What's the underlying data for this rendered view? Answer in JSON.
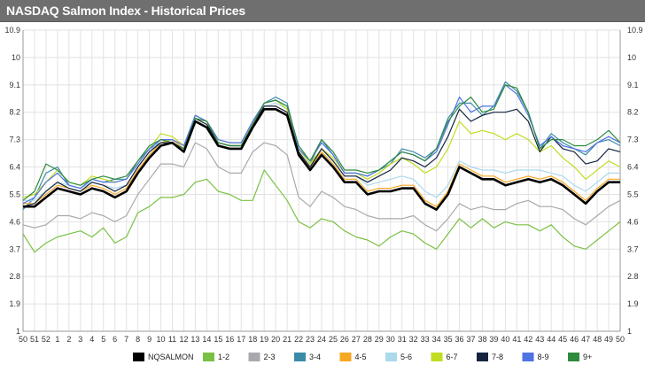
{
  "header": {
    "title": "NASDAQ Salmon Index - Historical Prices"
  },
  "chart_data": {
    "type": "line",
    "title": "NASDAQ Salmon Index - Historical Prices",
    "xlabel": "",
    "ylabel": "",
    "ylim": [
      1,
      10.9
    ],
    "y_ticks": [
      "1",
      "1.9",
      "2.8",
      "3.7",
      "4.6",
      "5.5",
      "6.4",
      "7.3",
      "8.2",
      "9.1",
      "10",
      "10.9"
    ],
    "categories": [
      "50",
      "51",
      "52",
      "1",
      "2",
      "3",
      "4",
      "5",
      "6",
      "7",
      "8",
      "9",
      "10",
      "11",
      "12",
      "13",
      "14",
      "15",
      "16",
      "17",
      "18",
      "19",
      "20",
      "21",
      "22",
      "23",
      "24",
      "25",
      "26",
      "27",
      "28",
      "29",
      "30",
      "31",
      "32",
      "33",
      "34",
      "35",
      "36",
      "37",
      "38",
      "39",
      "40",
      "41",
      "42",
      "43",
      "44",
      "45",
      "46",
      "47",
      "48",
      "49",
      "50"
    ],
    "grid": true,
    "legend_position": "bottom",
    "series": [
      {
        "name": "NQSALMON",
        "color": "#000000",
        "values": [
          5.1,
          5.1,
          5.4,
          5.7,
          5.6,
          5.5,
          5.7,
          5.6,
          5.4,
          5.6,
          6.2,
          6.7,
          7.1,
          7.2,
          6.9,
          7.9,
          7.7,
          7.1,
          7.0,
          7.0,
          7.7,
          8.3,
          8.3,
          8.1,
          6.8,
          6.3,
          6.8,
          6.4,
          5.9,
          5.9,
          5.5,
          5.6,
          5.6,
          5.7,
          5.7,
          5.2,
          5.0,
          5.5,
          6.4,
          6.2,
          6.0,
          6.0,
          5.8,
          5.9,
          6.0,
          5.9,
          6.0,
          5.8,
          5.5,
          5.2,
          5.6,
          5.9,
          5.9
        ]
      },
      {
        "name": "1-2",
        "color": "#7ac143",
        "values": [
          4.2,
          3.6,
          3.9,
          4.1,
          4.2,
          4.3,
          4.1,
          4.4,
          3.9,
          4.1,
          4.9,
          5.1,
          5.4,
          5.4,
          5.5,
          5.9,
          6.0,
          5.6,
          5.5,
          5.3,
          5.3,
          6.3,
          5.8,
          5.3,
          4.6,
          4.4,
          4.7,
          4.6,
          4.3,
          4.1,
          4.0,
          3.8,
          4.1,
          4.3,
          4.2,
          3.9,
          3.7,
          4.2,
          4.7,
          4.4,
          4.7,
          4.4,
          4.6,
          4.5,
          4.5,
          4.3,
          4.5,
          4.1,
          3.8,
          3.7,
          4.0,
          4.3,
          4.6
        ]
      },
      {
        "name": "2-3",
        "color": "#a7a9ac",
        "values": [
          4.5,
          4.4,
          4.5,
          4.8,
          4.8,
          4.7,
          4.9,
          4.8,
          4.6,
          4.8,
          5.5,
          6.0,
          6.5,
          6.5,
          6.4,
          7.2,
          7.0,
          6.4,
          6.2,
          6.2,
          6.9,
          7.2,
          7.1,
          6.8,
          5.4,
          5.1,
          5.6,
          5.4,
          5.1,
          5.0,
          4.8,
          4.7,
          4.7,
          4.7,
          4.8,
          4.5,
          4.3,
          4.7,
          5.2,
          5.0,
          5.1,
          5.0,
          5.0,
          5.2,
          5.3,
          5.1,
          5.1,
          5.0,
          4.7,
          4.5,
          4.8,
          5.1,
          5.3
        ]
      },
      {
        "name": "3-4",
        "color": "#3b8aa8",
        "values": [
          5.0,
          5.4,
          6.2,
          6.4,
          5.8,
          5.7,
          6.0,
          5.9,
          6.0,
          6.0,
          6.6,
          7.0,
          7.2,
          7.2,
          7.0,
          8.1,
          7.9,
          7.2,
          7.1,
          7.1,
          7.8,
          8.5,
          8.7,
          8.5,
          7.0,
          6.5,
          7.3,
          6.8,
          6.2,
          6.2,
          6.1,
          6.3,
          6.5,
          7.0,
          6.9,
          6.7,
          7.0,
          8.0,
          8.5,
          8.5,
          8.1,
          8.4,
          9.2,
          8.9,
          8.2,
          7.0,
          7.5,
          7.2,
          7.0,
          6.8,
          7.2,
          7.3,
          7.1
        ]
      },
      {
        "name": "4-5",
        "color": "#f7a823",
        "values": [
          5.2,
          5.2,
          5.5,
          5.8,
          5.7,
          5.6,
          5.8,
          5.7,
          5.5,
          5.7,
          6.3,
          6.8,
          7.2,
          7.3,
          7.0,
          8.0,
          7.8,
          7.2,
          7.1,
          7.1,
          7.8,
          8.4,
          8.4,
          8.2,
          6.9,
          6.4,
          6.9,
          6.5,
          6.0,
          6.0,
          5.6,
          5.7,
          5.7,
          5.8,
          5.8,
          5.3,
          5.1,
          5.6,
          6.5,
          6.3,
          6.1,
          6.1,
          5.9,
          6.0,
          6.1,
          6.0,
          6.1,
          5.9,
          5.6,
          5.3,
          5.7,
          6.0,
          6.0
        ]
      },
      {
        "name": "5-6",
        "color": "#acd9ec",
        "values": [
          5.3,
          5.3,
          5.6,
          5.9,
          5.8,
          5.7,
          5.9,
          5.8,
          5.7,
          5.8,
          6.4,
          6.9,
          7.3,
          7.3,
          7.1,
          8.0,
          7.9,
          7.3,
          7.2,
          7.2,
          7.9,
          8.4,
          8.5,
          8.3,
          7.0,
          6.5,
          7.0,
          6.6,
          6.1,
          6.1,
          5.8,
          5.9,
          6.0,
          6.1,
          6.0,
          5.6,
          5.4,
          5.8,
          6.6,
          6.4,
          6.3,
          6.3,
          6.2,
          6.3,
          6.3,
          6.3,
          6.2,
          6.1,
          5.8,
          5.6,
          5.9,
          6.2,
          6.2
        ]
      },
      {
        "name": "6-7",
        "color": "#c2dc21",
        "values": [
          5.4,
          5.5,
          5.9,
          6.3,
          5.9,
          5.8,
          6.1,
          6.0,
          5.9,
          6.0,
          6.5,
          7.0,
          7.5,
          7.4,
          7.1,
          8.1,
          7.9,
          7.3,
          7.2,
          7.2,
          7.9,
          8.5,
          8.6,
          8.3,
          7.0,
          6.5,
          7.0,
          6.7,
          6.2,
          6.2,
          6.0,
          6.2,
          6.5,
          6.7,
          6.5,
          6.2,
          6.4,
          7.0,
          7.9,
          7.5,
          7.6,
          7.5,
          7.3,
          7.5,
          7.3,
          6.9,
          7.1,
          6.7,
          6.4,
          6.0,
          6.3,
          6.6,
          6.4
        ]
      },
      {
        "name": "7-8",
        "color": "#14243f",
        "values": [
          5.1,
          5.2,
          5.6,
          5.9,
          5.7,
          5.6,
          5.9,
          5.8,
          5.6,
          5.8,
          6.4,
          6.9,
          7.2,
          7.2,
          7.0,
          8.0,
          7.8,
          7.2,
          7.1,
          7.1,
          7.8,
          8.4,
          8.4,
          8.2,
          6.9,
          6.4,
          7.0,
          6.6,
          6.1,
          6.1,
          5.9,
          6.1,
          6.3,
          6.7,
          6.6,
          6.4,
          6.7,
          7.4,
          8.3,
          7.9,
          8.1,
          8.2,
          8.2,
          8.3,
          7.9,
          6.9,
          7.4,
          7.0,
          6.9,
          6.5,
          6.6,
          7.0,
          6.9
        ]
      },
      {
        "name": "8-9",
        "color": "#4f73e3",
        "values": [
          5.2,
          5.4,
          5.9,
          6.2,
          5.8,
          5.7,
          6.0,
          5.9,
          5.9,
          6.0,
          6.5,
          7.0,
          7.3,
          7.3,
          7.1,
          8.1,
          7.9,
          7.3,
          7.2,
          7.2,
          7.9,
          8.5,
          8.6,
          8.4,
          7.0,
          6.6,
          7.2,
          6.8,
          6.2,
          6.2,
          6.1,
          6.3,
          6.6,
          6.9,
          6.8,
          6.6,
          6.9,
          7.8,
          8.7,
          8.2,
          8.4,
          8.4,
          9.1,
          8.8,
          8.1,
          7.1,
          7.4,
          7.1,
          7.0,
          6.9,
          7.2,
          7.4,
          7.2
        ]
      },
      {
        "name": "9+",
        "color": "#2e8b3d",
        "values": [
          5.3,
          5.6,
          6.5,
          6.3,
          5.9,
          5.8,
          6.0,
          6.1,
          6.0,
          6.1,
          6.6,
          7.1,
          7.3,
          7.2,
          7.0,
          8.0,
          7.9,
          7.2,
          7.1,
          7.1,
          7.8,
          8.5,
          8.6,
          8.4,
          7.1,
          6.6,
          7.3,
          6.9,
          6.3,
          6.3,
          6.2,
          6.3,
          6.6,
          6.9,
          6.8,
          6.6,
          7.0,
          7.9,
          8.4,
          8.7,
          8.2,
          8.3,
          9.1,
          9.0,
          8.2,
          7.0,
          7.3,
          7.3,
          7.1,
          7.1,
          7.3,
          7.6,
          7.2
        ]
      }
    ]
  }
}
